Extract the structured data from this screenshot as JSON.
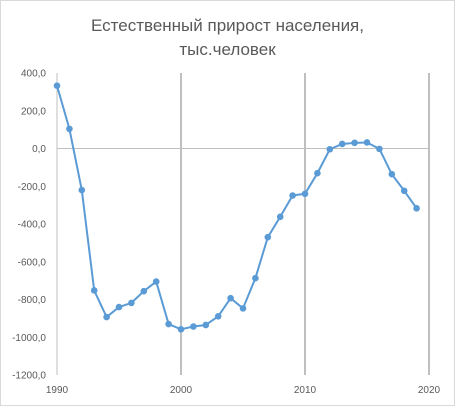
{
  "chart_data": {
    "type": "line",
    "title_lines": [
      "Естественный прирост населения,",
      "тыс.человек"
    ],
    "xlabel": "",
    "ylabel": "",
    "xlim": [
      1990,
      2020
    ],
    "ylim": [
      -1200,
      400
    ],
    "x_ticks": [
      1990,
      2000,
      2010,
      2020
    ],
    "y_ticks": [
      400,
      200,
      0,
      -200,
      -400,
      -600,
      -800,
      -1000,
      -1200
    ],
    "y_tick_labels": [
      "400,0",
      "200,0",
      "0,0",
      "-200,0",
      "-400,0",
      "-600,0",
      "-800,0",
      "-1000,0",
      "-1200,0"
    ],
    "grid": "vertical",
    "legend": "none",
    "series": [
      {
        "color": "#5b9bd5",
        "x": [
          1990,
          1991,
          1992,
          1993,
          1994,
          1995,
          1996,
          1997,
          1998,
          1999,
          2000,
          2001,
          2002,
          2003,
          2004,
          2005,
          2006,
          2007,
          2008,
          2009,
          2010,
          2011,
          2012,
          2013,
          2014,
          2015,
          2016,
          2017,
          2018,
          2019
        ],
        "values": [
          333,
          104,
          -220,
          -752,
          -893,
          -840,
          -818,
          -756,
          -705,
          -930,
          -958,
          -943,
          -935,
          -889,
          -793,
          -847,
          -687,
          -470,
          -362,
          -249,
          -240,
          -131,
          -4,
          24,
          30,
          32,
          -2,
          -136,
          -224,
          -317
        ]
      }
    ]
  }
}
